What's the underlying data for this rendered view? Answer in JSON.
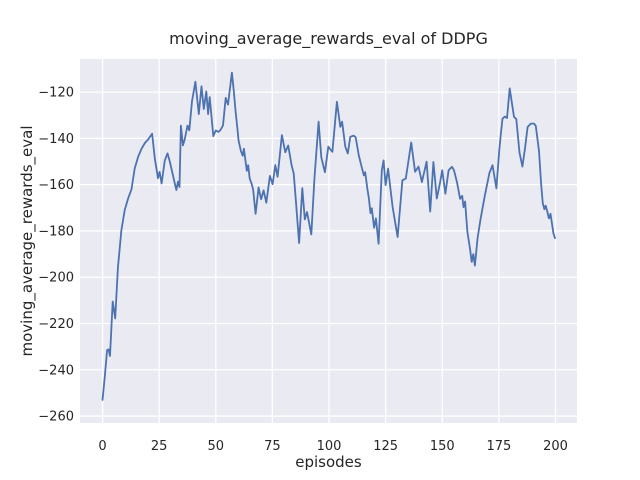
{
  "chart_data": {
    "type": "line",
    "title": "moving_average_rewards_eval of DDPG",
    "xlabel": "episodes",
    "ylabel": "moving_average_rewards_eval",
    "x_ticks": [
      0,
      25,
      50,
      75,
      100,
      125,
      150,
      175,
      200
    ],
    "y_ticks": [
      -260,
      -240,
      -220,
      -200,
      -180,
      -160,
      -140,
      -120
    ],
    "xlim": [
      -9.95,
      209.5
    ],
    "ylim": [
      -263.0,
      -105.7
    ],
    "grid": true,
    "legend": "none",
    "colors": {
      "figure_bg": "#ffffff",
      "axes_bg": "#eaeaf2",
      "grid": "#ffffff",
      "line": "#4c72b0",
      "text": "#262626"
    },
    "series": [
      {
        "name": "moving_average_rewards_eval",
        "points": [
          [
            0,
            -253
          ],
          [
            1,
            -243
          ],
          [
            2,
            -231.5
          ],
          [
            2.7,
            -231.2
          ],
          [
            3.3,
            -234
          ],
          [
            4.5,
            -210.5
          ],
          [
            5.6,
            -217.8
          ],
          [
            6.8,
            -196
          ],
          [
            8.3,
            -180
          ],
          [
            9.8,
            -171
          ],
          [
            11.3,
            -166
          ],
          [
            12.8,
            -162
          ],
          [
            14.2,
            -153
          ],
          [
            15.7,
            -148
          ],
          [
            17.2,
            -144.5
          ],
          [
            18.7,
            -142
          ],
          [
            20.1,
            -140.5
          ],
          [
            21.9,
            -138
          ],
          [
            23.1,
            -149
          ],
          [
            24.5,
            -157.2
          ],
          [
            25.2,
            -154.5
          ],
          [
            26.1,
            -159.5
          ],
          [
            27.5,
            -149.5
          ],
          [
            28.7,
            -146.5
          ],
          [
            29.7,
            -150
          ],
          [
            31,
            -155.5
          ],
          [
            31.9,
            -159.5
          ],
          [
            32.6,
            -162.3
          ],
          [
            33.3,
            -158.7
          ],
          [
            34,
            -161
          ],
          [
            34.6,
            -134.5
          ],
          [
            35.5,
            -143
          ],
          [
            36.3,
            -140.5
          ],
          [
            37.5,
            -134.5
          ],
          [
            38.3,
            -136.5
          ],
          [
            39.5,
            -124
          ],
          [
            41,
            -115.5
          ],
          [
            42.5,
            -129.5
          ],
          [
            43.7,
            -117.5
          ],
          [
            44.7,
            -127.3
          ],
          [
            45.8,
            -119.7
          ],
          [
            46.6,
            -129.5
          ],
          [
            47.3,
            -122.2
          ],
          [
            48.9,
            -139
          ],
          [
            50,
            -136.6
          ],
          [
            51.1,
            -137.2
          ],
          [
            52.1,
            -136.4
          ],
          [
            53.2,
            -134.4
          ],
          [
            54.4,
            -122.5
          ],
          [
            55.4,
            -125.4
          ],
          [
            57.1,
            -111.6
          ],
          [
            58,
            -120
          ],
          [
            58.7,
            -128
          ],
          [
            59.4,
            -134.5
          ],
          [
            60.1,
            -141
          ],
          [
            61.1,
            -145.5
          ],
          [
            61.9,
            -147.5
          ],
          [
            62.4,
            -144.5
          ],
          [
            63.7,
            -154
          ],
          [
            64.3,
            -151.6
          ],
          [
            65,
            -157.4
          ],
          [
            65.8,
            -159.6
          ],
          [
            66.5,
            -162
          ],
          [
            67.6,
            -172.6
          ],
          [
            68.9,
            -161.2
          ],
          [
            70,
            -166.3
          ],
          [
            71.1,
            -162.5
          ],
          [
            72.3,
            -167.8
          ],
          [
            73.9,
            -156.2
          ],
          [
            75.1,
            -159.8
          ],
          [
            76.3,
            -151.6
          ],
          [
            77.3,
            -156.6
          ],
          [
            79.2,
            -138.6
          ],
          [
            80.7,
            -146
          ],
          [
            82,
            -143.1
          ],
          [
            83.5,
            -151.6
          ],
          [
            84.4,
            -155.2
          ],
          [
            85.3,
            -166
          ],
          [
            86.8,
            -185.2
          ],
          [
            88.2,
            -161.5
          ],
          [
            89.3,
            -175
          ],
          [
            90.3,
            -171.8
          ],
          [
            91.2,
            -176.5
          ],
          [
            92.2,
            -181.5
          ],
          [
            93.6,
            -157
          ],
          [
            95.4,
            -132.8
          ],
          [
            96.6,
            -148.2
          ],
          [
            98.2,
            -154.6
          ],
          [
            99.7,
            -143.6
          ],
          [
            100.6,
            -144.8
          ],
          [
            101.5,
            -145.8
          ],
          [
            103.5,
            -124.2
          ],
          [
            105,
            -135
          ],
          [
            105.8,
            -132.8
          ],
          [
            107.2,
            -143.6
          ],
          [
            108.3,
            -146.5
          ],
          [
            109.4,
            -139.3
          ],
          [
            110.9,
            -138.8
          ],
          [
            111.8,
            -139.6
          ],
          [
            113.1,
            -147.2
          ],
          [
            114.6,
            -153.1
          ],
          [
            115.4,
            -156
          ],
          [
            116,
            -154.6
          ],
          [
            116.9,
            -161.6
          ],
          [
            117.6,
            -166
          ],
          [
            118.3,
            -172.3
          ],
          [
            118.9,
            -170.2
          ],
          [
            119.9,
            -178.6
          ],
          [
            120.7,
            -174.6
          ],
          [
            121.9,
            -185.5
          ],
          [
            123.3,
            -153.8
          ],
          [
            124.1,
            -149.5
          ],
          [
            125,
            -160.2
          ],
          [
            126.1,
            -153.1
          ],
          [
            128.1,
            -169.6
          ],
          [
            130.3,
            -182.6
          ],
          [
            132.4,
            -158.1
          ],
          [
            133.9,
            -157.4
          ],
          [
            136.3,
            -141.8
          ],
          [
            138,
            -154.4
          ],
          [
            139.5,
            -152.2
          ],
          [
            141,
            -158.9
          ],
          [
            143.1,
            -150.1
          ],
          [
            144.7,
            -171.6
          ],
          [
            146.1,
            -150.2
          ],
          [
            147.6,
            -166
          ],
          [
            149.1,
            -158.8
          ],
          [
            150,
            -153.8
          ],
          [
            151.4,
            -163.9
          ],
          [
            152.8,
            -153.8
          ],
          [
            154.3,
            -152.3
          ],
          [
            155.2,
            -153.8
          ],
          [
            156.5,
            -159
          ],
          [
            157.9,
            -166.1
          ],
          [
            158.8,
            -164.8
          ],
          [
            159.4,
            -169.7
          ],
          [
            160.1,
            -167.3
          ],
          [
            161.1,
            -180.4
          ],
          [
            162.3,
            -188
          ],
          [
            163,
            -193.4
          ],
          [
            163.7,
            -190
          ],
          [
            164.4,
            -195
          ],
          [
            165.6,
            -183
          ],
          [
            166.9,
            -175
          ],
          [
            168.8,
            -164.8
          ],
          [
            170.8,
            -155
          ],
          [
            172.2,
            -151.6
          ],
          [
            173.9,
            -161.6
          ],
          [
            175.1,
            -146
          ],
          [
            175.8,
            -138.6
          ],
          [
            176.6,
            -131.5
          ],
          [
            177.6,
            -130.6
          ],
          [
            178.6,
            -131.2
          ],
          [
            179.8,
            -118.4
          ],
          [
            180.9,
            -125.6
          ],
          [
            181.7,
            -130.7
          ],
          [
            182.7,
            -131.6
          ],
          [
            184.1,
            -146.2
          ],
          [
            185.4,
            -152.2
          ],
          [
            186.6,
            -144
          ],
          [
            187.7,
            -135.1
          ],
          [
            189.1,
            -133.6
          ],
          [
            190.5,
            -133.6
          ],
          [
            191.3,
            -134.6
          ],
          [
            192.7,
            -145.5
          ],
          [
            193.7,
            -160.1
          ],
          [
            194.4,
            -168.1
          ],
          [
            195.1,
            -170.6
          ],
          [
            195.7,
            -169.1
          ],
          [
            196.4,
            -171.6
          ],
          [
            197.1,
            -174.6
          ],
          [
            197.8,
            -172.6
          ],
          [
            199.1,
            -181
          ],
          [
            199.8,
            -183.1
          ]
        ]
      }
    ]
  }
}
